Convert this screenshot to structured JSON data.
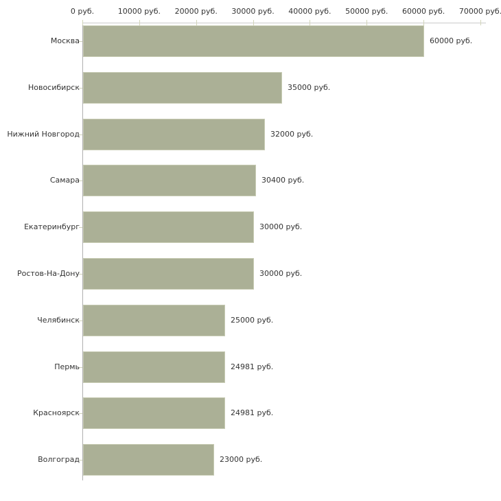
{
  "chart_data": {
    "type": "bar",
    "orientation": "horizontal",
    "title": "",
    "xlabel": "",
    "ylabel": "",
    "unit": "руб.",
    "categories": [
      "Москва",
      "Новосибирск",
      "Нижний Новгород",
      "Самара",
      "Екатеринбург",
      "Ростов-На-Дону",
      "Челябинск",
      "Пермь",
      "Красноярск",
      "Волгоград"
    ],
    "values": [
      60000,
      35000,
      32000,
      30400,
      30000,
      30000,
      25000,
      24981,
      24981,
      23000
    ],
    "bar_labels": [
      "60000 руб.",
      "35000 руб.",
      "32000 руб.",
      "30400 руб.",
      "30000 руб.",
      "30000 руб.",
      "25000 руб.",
      "24981 руб.",
      "24981 руб.",
      "23000 руб."
    ],
    "x_ticks": [
      {
        "value": 0,
        "label": "0 руб."
      },
      {
        "value": 10000,
        "label": "10000 руб."
      },
      {
        "value": 20000,
        "label": "20000 руб."
      },
      {
        "value": 30000,
        "label": "30000 руб."
      },
      {
        "value": 40000,
        "label": "40000 руб."
      },
      {
        "value": 50000,
        "label": "50000 руб."
      },
      {
        "value": 60000,
        "label": "60000 руб."
      },
      {
        "value": 70000,
        "label": "70000 руб."
      }
    ],
    "xlim": [
      0,
      70000
    ],
    "grid": false,
    "legend": false,
    "colors": {
      "bar_fill": "#abb096",
      "bar_border": "#c8ccb4",
      "x_axis_line": "#c9c9c9",
      "y_axis_line": "#b0b0b0",
      "tick_mark": "#d2d5ba",
      "category_tick_mark": "#cfd2b8",
      "text": "#333333",
      "background": "#ffffff"
    }
  }
}
